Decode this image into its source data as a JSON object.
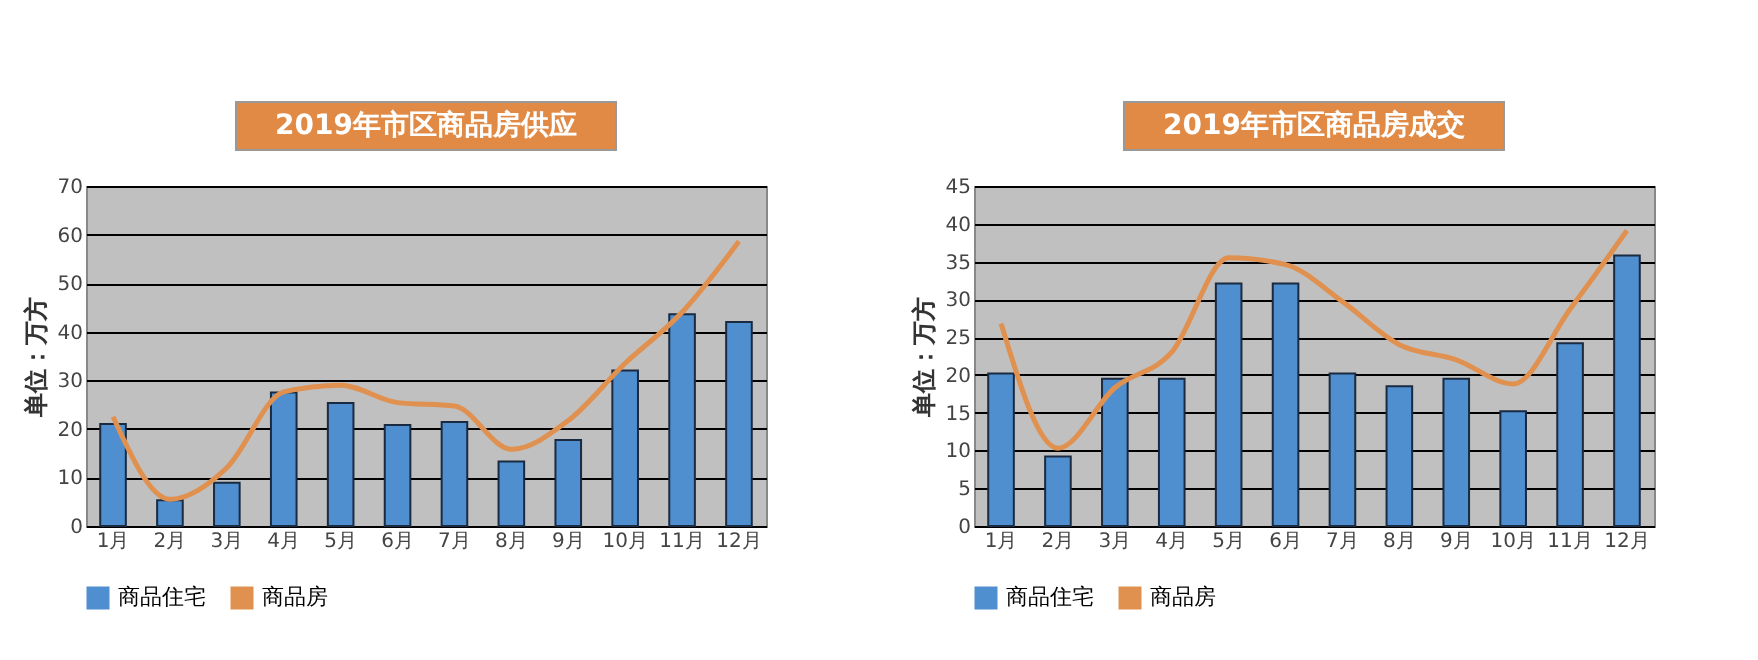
{
  "chart_data": [
    {
      "type": "bar",
      "title": "2019年市区商品房供应",
      "ylabel": "单位：万方",
      "categories": [
        "1月",
        "2月",
        "3月",
        "4月",
        "5月",
        "6月",
        "7月",
        "8月",
        "9月",
        "10月",
        "11月",
        "12月"
      ],
      "series": [
        {
          "name": "商品住宅",
          "color": "#4f8fcf",
          "values": [
            21,
            5.3,
            8.9,
            27.5,
            25.3,
            20.8,
            21.4,
            13.3,
            17.7,
            32,
            43.6,
            42
          ]
        },
        {
          "name": "商品房",
          "type": "line",
          "color": "#e0914f",
          "values": [
            22.5,
            5.5,
            12,
            27.6,
            29,
            25.4,
            24.7,
            15.8,
            21.7,
            33.5,
            44,
            58.6
          ]
        }
      ],
      "ylim": [
        0,
        70
      ],
      "yticks": [
        0,
        10,
        20,
        30,
        40,
        50,
        60,
        70
      ],
      "grid": "y",
      "legend": "bottom"
    },
    {
      "type": "bar",
      "title": "2019年市区商品房成交",
      "ylabel": "单位：万方",
      "categories": [
        "1月",
        "2月",
        "3月",
        "4月",
        "5月",
        "6月",
        "7月",
        "8月",
        "9月",
        "10月",
        "11月",
        "12月"
      ],
      "series": [
        {
          "name": "商品住宅",
          "color": "#4f8fcf",
          "values": [
            20.2,
            9.2,
            19.5,
            19.5,
            32.1,
            32.1,
            20.2,
            18.5,
            19.5,
            15.2,
            24.2,
            35.8
          ]
        },
        {
          "name": "商品房",
          "type": "line",
          "color": "#e0914f",
          "values": [
            26.8,
            10.3,
            18.3,
            23,
            35.5,
            34.6,
            29.7,
            24,
            22,
            18.8,
            28.7,
            39.1
          ]
        }
      ],
      "ylim": [
        0,
        45
      ],
      "yticks": [
        0,
        5,
        10,
        15,
        20,
        25,
        30,
        35,
        40,
        45
      ],
      "grid": "y",
      "legend": "bottom"
    }
  ]
}
